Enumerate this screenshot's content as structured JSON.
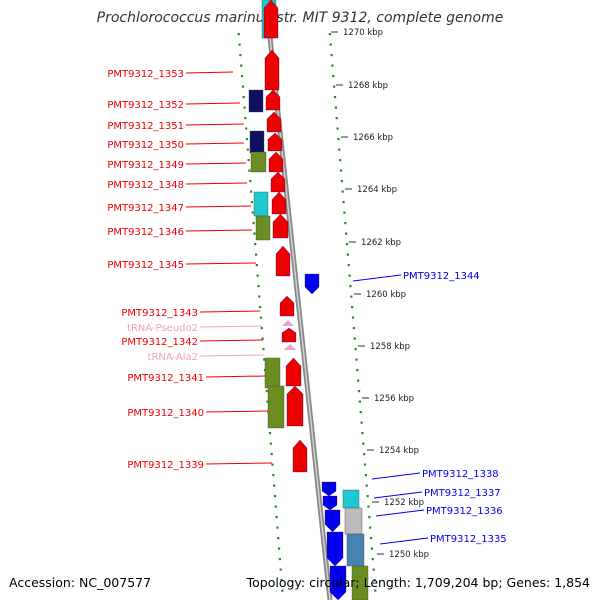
{
  "title": "Prochlorococcus marinus str. MIT 9312, complete genome",
  "footer": {
    "accession": "Accession: NC_007577",
    "summary": "Topology: circular; Length: 1,709,204 bp; Genes: 1,854"
  },
  "colors": {
    "forward_gene": "#ee0000",
    "reverse_gene": "#0000ee",
    "trna": "#f0a0c8",
    "cog_green": "#6b8e23",
    "cog_cyan": "#20c8d0",
    "cog_navy": "#101060",
    "cog_grey": "#bbbbbb",
    "cog_steel": "#4682b4",
    "backbone": "#888888",
    "ring_dots": "#228b22"
  },
  "ticks": [
    {
      "label": "1270 kbp"
    },
    {
      "label": "1268 kbp"
    },
    {
      "label": "1266 kbp"
    },
    {
      "label": "1264 kbp"
    },
    {
      "label": "1262 kbp"
    },
    {
      "label": "1260 kbp"
    },
    {
      "label": "1258 kbp"
    },
    {
      "label": "1256 kbp"
    },
    {
      "label": "1254 kbp"
    },
    {
      "label": "1252 kbp"
    },
    {
      "label": "1250 kbp"
    }
  ],
  "forward_labels": [
    "PMT9312_1353",
    "PMT9312_1352",
    "PMT9312_1351",
    "PMT9312_1350",
    "PMT9312_1349",
    "PMT9312_1348",
    "PMT9312_1347",
    "PMT9312_1346",
    "PMT9312_1345",
    "PMT9312_1343",
    "tRNA-Pseudo2",
    "PMT9312_1342",
    "tRNA-Ala2",
    "PMT9312_1341",
    "PMT9312_1340",
    "PMT9312_1339"
  ],
  "reverse_labels": [
    "PMT9312_1344",
    "PMT9312_1338",
    "PMT9312_1337",
    "PMT9312_1336",
    "PMT9312_1335"
  ]
}
